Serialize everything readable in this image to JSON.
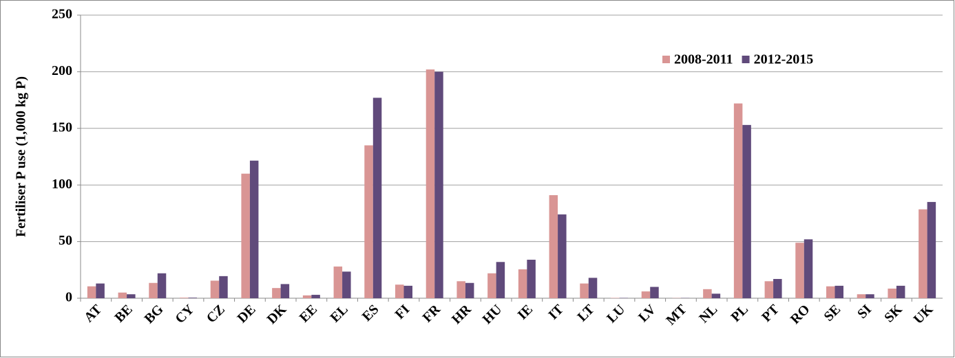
{
  "chart_data": {
    "type": "bar",
    "y_label": "Fertiliser P use  (1,000 kg P)",
    "categories": [
      "AT",
      "BE",
      "BG",
      "CY",
      "CZ",
      "DE",
      "DK",
      "EE",
      "EL",
      "ES",
      "FI",
      "FR",
      "HR",
      "HU",
      "IE",
      "IT",
      "LT",
      "LU",
      "LV",
      "MT",
      "NL",
      "PL",
      "PT",
      "RO",
      "SE",
      "SI",
      "SK",
      "UK"
    ],
    "series": [
      {
        "name": "2008-2011",
        "color": "#d99594",
        "values": [
          10.5,
          5,
          13.5,
          0.5,
          15.5,
          110,
          9,
          2.5,
          28,
          135,
          12,
          202,
          15,
          22,
          25.5,
          91,
          13,
          0.3,
          6,
          0.2,
          8,
          172,
          15,
          49,
          10.5,
          3.5,
          8.5,
          78.5
        ]
      },
      {
        "name": "2012-2015",
        "color": "#604a7b",
        "values": [
          13,
          3.5,
          22,
          0.5,
          19.5,
          121.5,
          12.5,
          3,
          23.5,
          177,
          11,
          200,
          13.5,
          32,
          34,
          74,
          18,
          0.3,
          10,
          0.2,
          4,
          153,
          17,
          52,
          11,
          3.5,
          11,
          85
        ]
      }
    ],
    "ylim": [
      0,
      250
    ],
    "yticks": [
      0,
      50,
      100,
      150,
      200,
      250
    ],
    "grid": true,
    "legend": "top-right"
  }
}
